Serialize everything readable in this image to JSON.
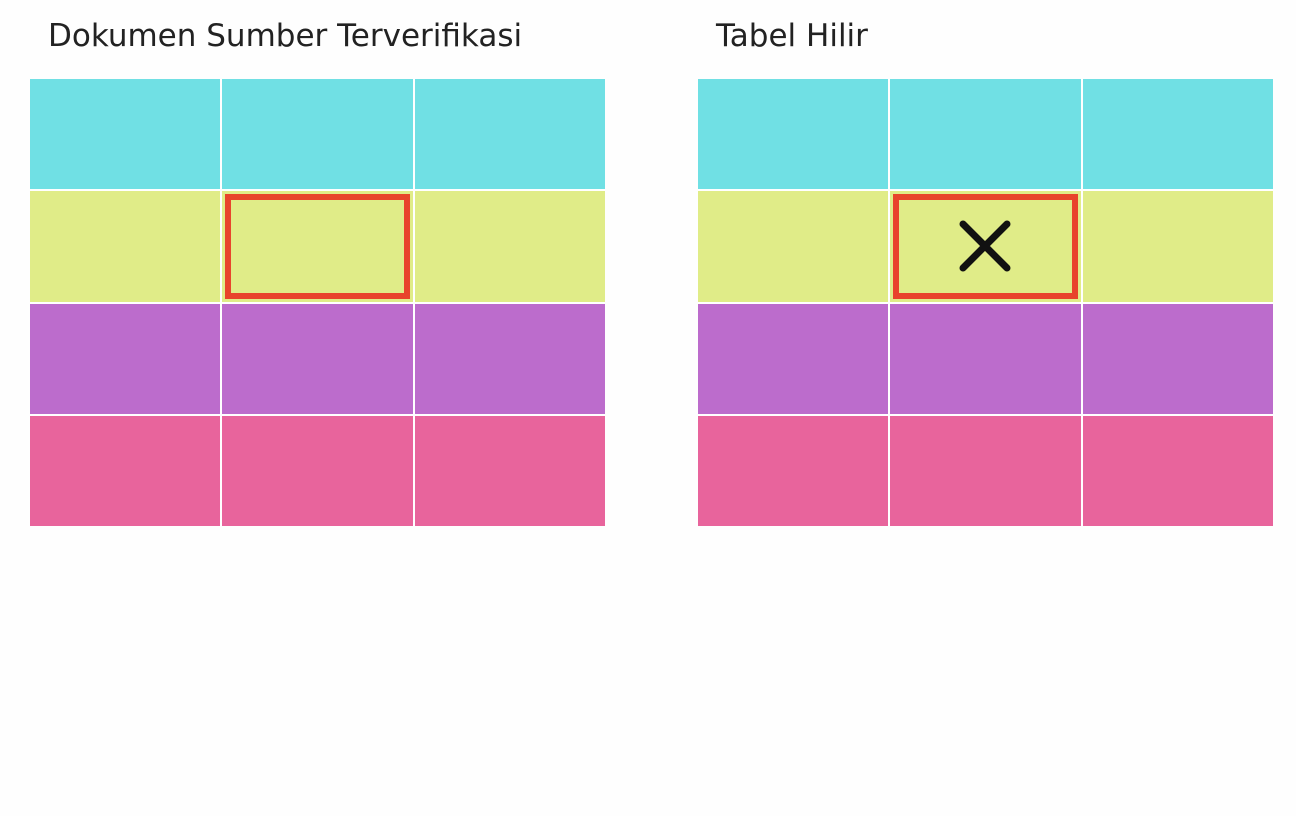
{
  "left_panel": {
    "title": "Dokumen Sumber Terverifikasi"
  },
  "right_panel": {
    "title": "Tabel Hilir"
  },
  "row_colors": [
    "#70e0e4",
    "#e0ec88",
    "#bc6ccc",
    "#e8649c"
  ],
  "highlight_color": "#e8442c",
  "rows": 4,
  "columns": 3,
  "highlighted_cell": {
    "row": 2,
    "column": 2
  },
  "right_highlight_icon": "x-mark-icon"
}
